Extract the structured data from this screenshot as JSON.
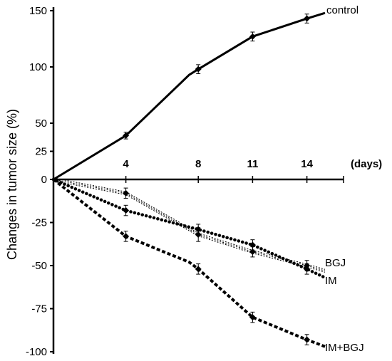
{
  "chart_data": {
    "type": "line",
    "ylabel": "Changes in tumor size (%)",
    "xlabel": "(days)",
    "x_ticks": [
      4,
      8,
      11,
      14
    ],
    "y_ticks": [
      150,
      100,
      50,
      25,
      0,
      -25,
      -50,
      -75,
      -100
    ],
    "series": [
      {
        "name": "control",
        "points": [
          [
            0,
            0
          ],
          [
            4,
            39
          ],
          [
            7.5,
            93
          ],
          [
            8,
            98
          ],
          [
            11,
            127
          ],
          [
            14,
            143
          ],
          [
            15,
            148
          ]
        ],
        "markers": [
          [
            4,
            39,
            3
          ],
          [
            8,
            98,
            4
          ],
          [
            11,
            127,
            4
          ],
          [
            14,
            143,
            4
          ]
        ]
      },
      {
        "name": "BGJ",
        "points": [
          [
            0,
            0
          ],
          [
            4,
            -8
          ],
          [
            8,
            -32
          ],
          [
            11,
            -42
          ],
          [
            14,
            -50
          ],
          [
            15,
            -53
          ]
        ],
        "markers": [
          [
            4,
            -8,
            3
          ],
          [
            8,
            -32,
            4
          ],
          [
            11,
            -42,
            3
          ],
          [
            14,
            -50,
            3
          ]
        ]
      },
      {
        "name": "IM",
        "points": [
          [
            0,
            0
          ],
          [
            4,
            -18
          ],
          [
            8,
            -29
          ],
          [
            11,
            -38
          ],
          [
            14,
            -52
          ],
          [
            15,
            -57
          ]
        ],
        "markers": [
          [
            4,
            -18,
            3
          ],
          [
            8,
            -29,
            3
          ],
          [
            11,
            -38,
            3
          ],
          [
            14,
            -52,
            3
          ]
        ]
      },
      {
        "name": "IM+BGJ",
        "points": [
          [
            0,
            0
          ],
          [
            4,
            -33
          ],
          [
            7.5,
            -48
          ],
          [
            8,
            -52
          ],
          [
            11,
            -80
          ],
          [
            14,
            -93
          ],
          [
            15,
            -97
          ]
        ],
        "markers": [
          [
            4,
            -33,
            3
          ],
          [
            8,
            -52,
            3
          ],
          [
            11,
            -80,
            3
          ],
          [
            14,
            -93,
            3
          ]
        ]
      }
    ]
  }
}
